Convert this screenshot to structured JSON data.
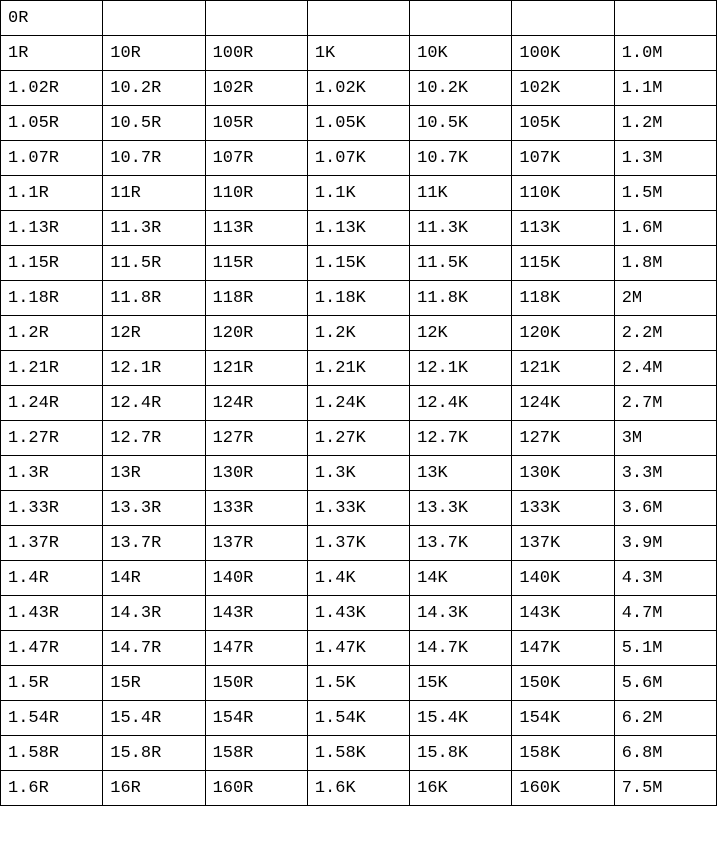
{
  "table": {
    "border_color": "#000000",
    "font_family": "SimSun",
    "font_size": 17,
    "text_color": "#000000",
    "background_color": "#ffffff",
    "num_cols": 7,
    "column_widths_pct": [
      14.28,
      14.28,
      14.28,
      14.28,
      14.28,
      14.28,
      14.28
    ],
    "rows": [
      [
        "0R",
        "",
        "",
        "",
        "",
        "",
        ""
      ],
      [
        "1R",
        "10R",
        "100R",
        "1K",
        "10K",
        "100K",
        "1.0M"
      ],
      [
        "1.02R",
        "10.2R",
        "102R",
        "1.02K",
        "10.2K",
        "102K",
        "1.1M"
      ],
      [
        "1.05R",
        "10.5R",
        "105R",
        "1.05K",
        "10.5K",
        "105K",
        "1.2M"
      ],
      [
        "1.07R",
        "10.7R",
        "107R",
        "1.07K",
        "10.7K",
        "107K",
        "1.3M"
      ],
      [
        "1.1R",
        "11R",
        "110R",
        "1.1K",
        "11K",
        "110K",
        "1.5M"
      ],
      [
        "1.13R",
        "11.3R",
        "113R",
        "1.13K",
        "11.3K",
        "113K",
        "1.6M"
      ],
      [
        "1.15R",
        "11.5R",
        "115R",
        "1.15K",
        "11.5K",
        "115K",
        "1.8M"
      ],
      [
        "1.18R",
        "11.8R",
        "118R",
        "1.18K",
        "11.8K",
        "118K",
        "2M"
      ],
      [
        "1.2R",
        "12R",
        "120R",
        "1.2K",
        "12K",
        "120K",
        "2.2M"
      ],
      [
        "1.21R",
        "12.1R",
        "121R",
        "1.21K",
        "12.1K",
        "121K",
        "2.4M"
      ],
      [
        "1.24R",
        "12.4R",
        "124R",
        "1.24K",
        "12.4K",
        "124K",
        "2.7M"
      ],
      [
        "1.27R",
        "12.7R",
        "127R",
        "1.27K",
        "12.7K",
        "127K",
        "3M"
      ],
      [
        "1.3R",
        "13R",
        "130R",
        "1.3K",
        "13K",
        "130K",
        "3.3M"
      ],
      [
        "1.33R",
        "13.3R",
        "133R",
        "1.33K",
        "13.3K",
        "133K",
        "3.6M"
      ],
      [
        "1.37R",
        "13.7R",
        "137R",
        "1.37K",
        "13.7K",
        "137K",
        "3.9M"
      ],
      [
        "1.4R",
        "14R",
        "140R",
        "1.4K",
        "14K",
        "140K",
        "4.3M"
      ],
      [
        "1.43R",
        "14.3R",
        "143R",
        "1.43K",
        "14.3K",
        "143K",
        "4.7M"
      ],
      [
        "1.47R",
        "14.7R",
        "147R",
        "1.47K",
        "14.7K",
        "147K",
        "5.1M"
      ],
      [
        "1.5R",
        "15R",
        "150R",
        "1.5K",
        "15K",
        "150K",
        "5.6M"
      ],
      [
        "1.54R",
        "15.4R",
        "154R",
        "1.54K",
        "15.4K",
        "154K",
        "6.2M"
      ],
      [
        "1.58R",
        "15.8R",
        "158R",
        "1.58K",
        "15.8K",
        "158K",
        "6.8M"
      ],
      [
        "1.6R",
        "16R",
        "160R",
        "1.6K",
        "16K",
        "160K",
        "7.5M"
      ]
    ]
  }
}
